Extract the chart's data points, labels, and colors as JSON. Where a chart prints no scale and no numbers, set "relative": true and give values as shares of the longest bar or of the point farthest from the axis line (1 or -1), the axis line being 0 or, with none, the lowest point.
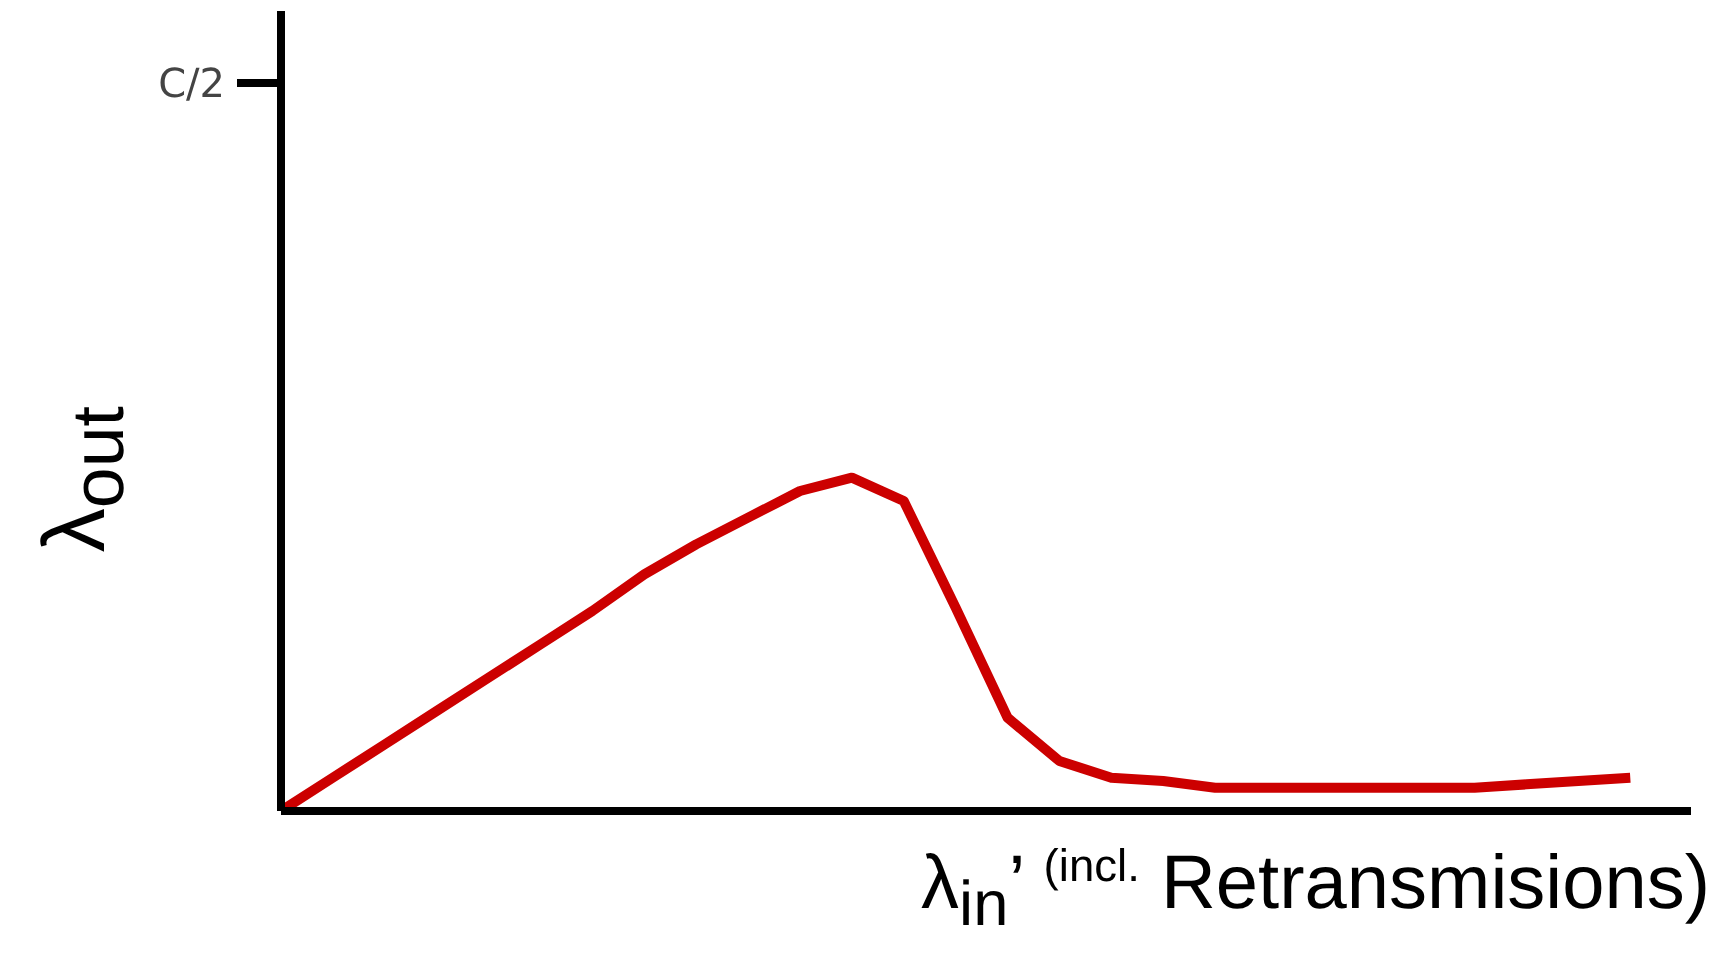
{
  "chart_data": {
    "type": "line",
    "relative": true,
    "xlabel": "λ$_{in}$’ $^{(incl.}$ Retransmisions)",
    "ylabel": "λ$_{out}$",
    "annotations": [
      "C/2"
    ],
    "categories": [
      null,
      null,
      null,
      null,
      null,
      null,
      null,
      null,
      null,
      null,
      null,
      null,
      null,
      null,
      null,
      null,
      null,
      null,
      null,
      null,
      null,
      null,
      null,
      null,
      null,
      null,
      null
    ],
    "series": [
      {
        "color": "#cc0000",
        "values": [
          0,
          0.1,
          0.2,
          0.3,
          0.4,
          0.5,
          0.6,
          0.71,
          0.8,
          0.88,
          0.96,
          1,
          0.93,
          0.61,
          0.28,
          0.15,
          0.1,
          0.09,
          0.07,
          0.07,
          0.07,
          0.07,
          0.07,
          0.07,
          0.08,
          0.09,
          0.1
        ]
      }
    ],
    "grid": false,
    "marker": "none",
    "line_style": "solid"
  }
}
